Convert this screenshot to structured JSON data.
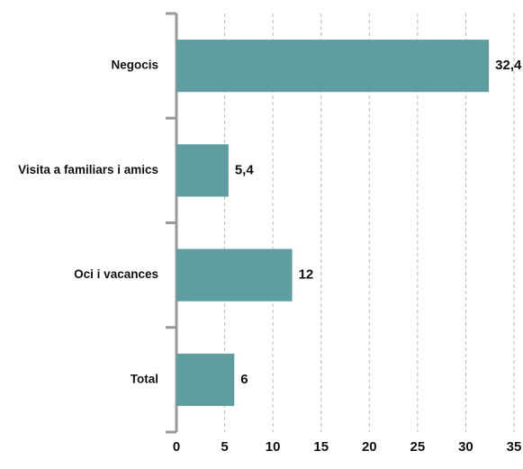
{
  "chart_data": {
    "type": "hbar",
    "categories": [
      "Negocis",
      "Visita a familiars i amics",
      "Oci i vacances",
      "Total"
    ],
    "values": [
      32.4,
      5.4,
      12,
      6
    ],
    "value_labels": [
      "32,4",
      "5,4",
      "12",
      "6"
    ],
    "color": "#5f9ea0",
    "xlim": [
      0,
      35
    ],
    "xticks": [
      0,
      5,
      10,
      15,
      20,
      25,
      30,
      35
    ],
    "grid": true
  }
}
